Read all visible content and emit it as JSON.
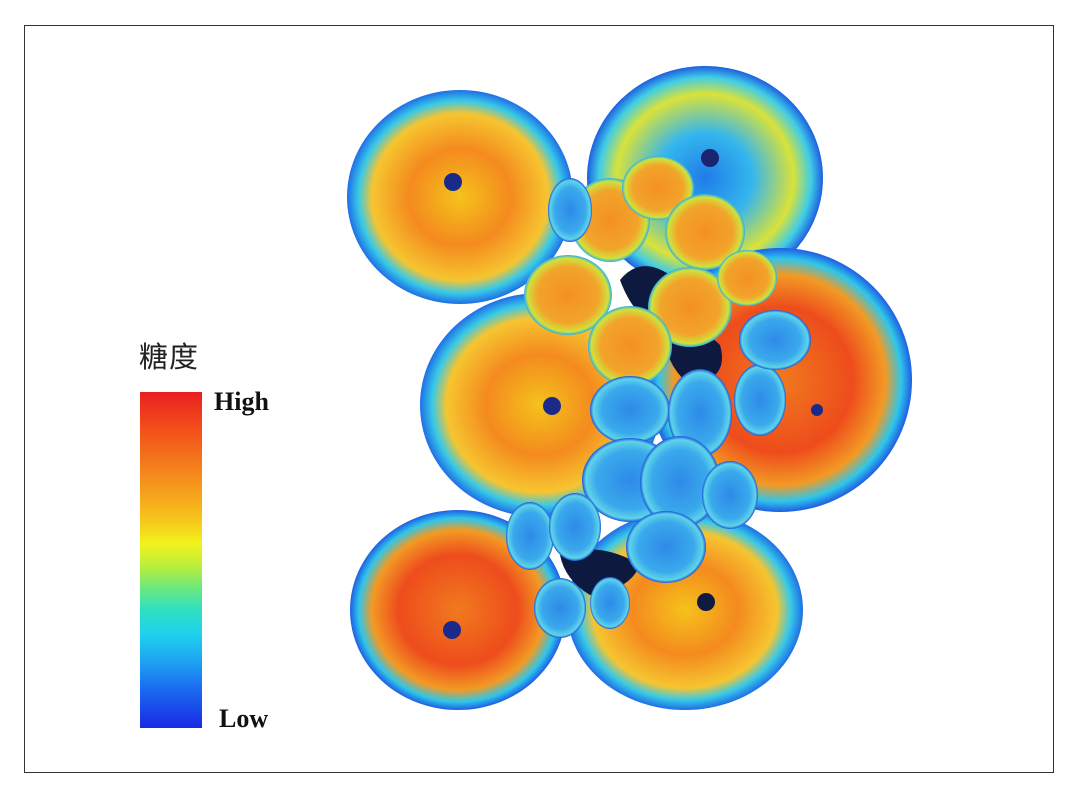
{
  "legend": {
    "title": "糖度",
    "high_label": "High",
    "low_label": "Low",
    "colors": [
      "#e82020",
      "#f58a1c",
      "#f2f21c",
      "#6fe87a",
      "#1fd2ee",
      "#1a6ef0",
      "#1a2ae6"
    ]
  }
}
